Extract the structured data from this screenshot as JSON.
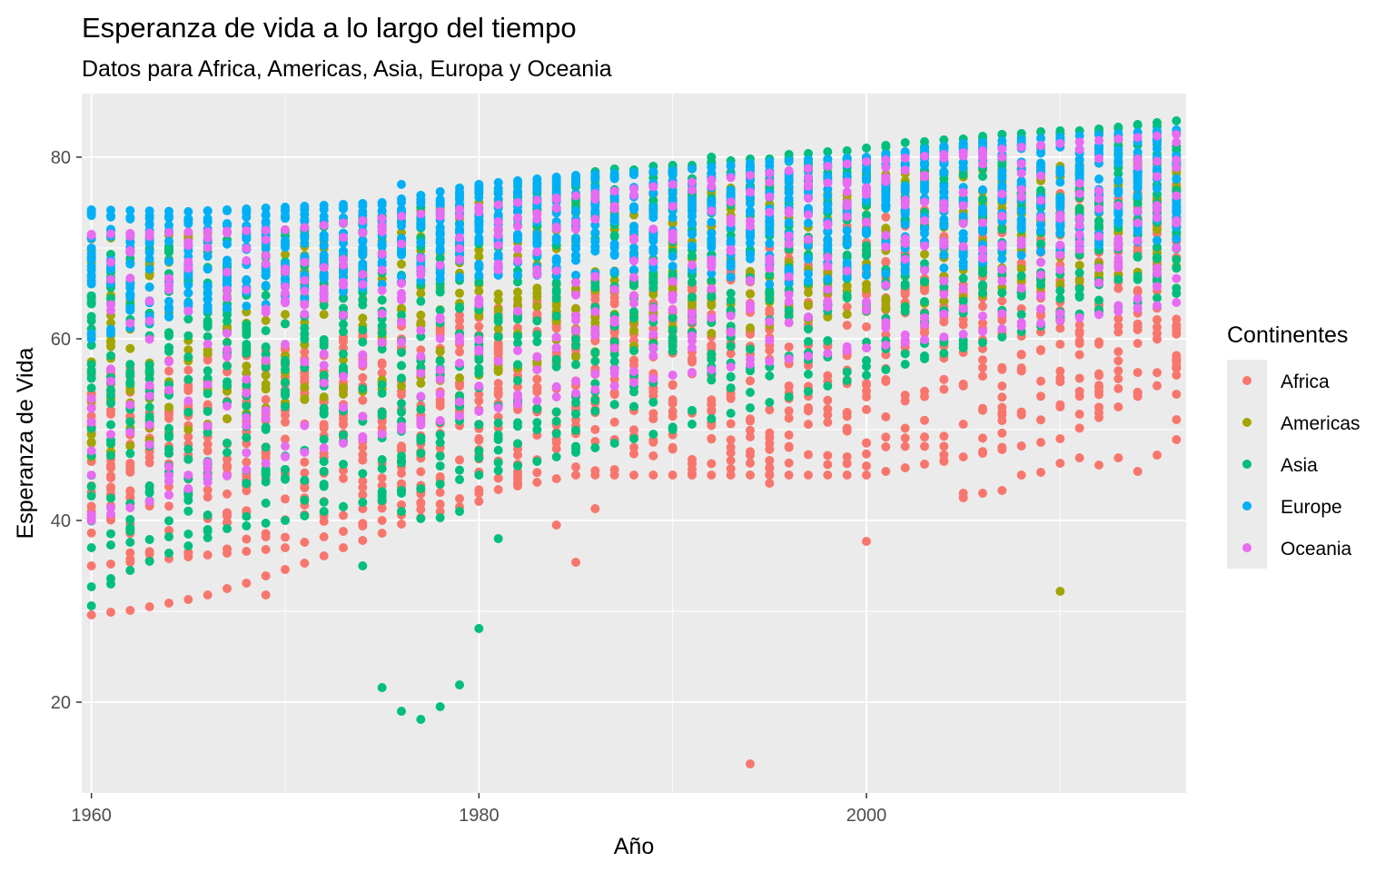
{
  "chart_data": {
    "type": "scatter",
    "title": "Esperanza de vida a lo largo del tiempo",
    "subtitle": "Datos para Africa, Americas, Asia, Europa y Oceania",
    "xlabel": "Año",
    "ylabel": "Esperanza de Vida",
    "xlim": [
      1959.5,
      2016.5
    ],
    "ylim": [
      10,
      87
    ],
    "x_ticks": [
      1960,
      1980,
      2000
    ],
    "y_ticks": [
      20,
      40,
      60,
      80
    ],
    "x_tick_labels": [
      "1960",
      "1980",
      "2000"
    ],
    "y_tick_labels": [
      "20",
      "40",
      "60",
      "80"
    ],
    "grid": true,
    "panel_background": "#ebebeb",
    "legend": {
      "title": "Continentes",
      "placement": "right",
      "items": [
        "Africa",
        "Americas",
        "Asia",
        "Europe",
        "Oceania"
      ]
    },
    "series": [
      {
        "name": "Africa",
        "color": "#f8766d",
        "range_start": [
          [
            1960,
            35,
            56
          ],
          [
            1965,
            36,
            58
          ],
          [
            1970,
            37,
            59
          ],
          [
            1975,
            40,
            61
          ],
          [
            1980,
            43,
            63
          ],
          [
            1985,
            45,
            65
          ],
          [
            1990,
            45,
            67
          ],
          [
            1995,
            45,
            70
          ],
          [
            2000,
            45,
            73
          ],
          [
            2005,
            47,
            75
          ],
          [
            2010,
            49,
            76
          ],
          [
            2016,
            56,
            77
          ]
        ],
        "outliers": [
          [
            1960,
            29.6
          ],
          [
            1961,
            29.9
          ],
          [
            1962,
            30.1
          ],
          [
            1963,
            30.5
          ],
          [
            1964,
            30.9
          ],
          [
            1965,
            31.3
          ],
          [
            1966,
            31.8
          ],
          [
            1967,
            32.5
          ],
          [
            1968,
            33.1
          ],
          [
            1969,
            31.8
          ],
          [
            1969,
            33.9
          ],
          [
            1970,
            34.6
          ],
          [
            1971,
            35.3
          ],
          [
            1972,
            36.1
          ],
          [
            1973,
            37.0
          ],
          [
            1974,
            37.8
          ],
          [
            1975,
            38.6
          ],
          [
            1976,
            39.6
          ],
          [
            1977,
            40.3
          ],
          [
            1978,
            41.0
          ],
          [
            1979,
            41.5
          ],
          [
            1980,
            42.1
          ],
          [
            1984,
            39.5
          ],
          [
            1985,
            35.4
          ],
          [
            1986,
            41.3
          ],
          [
            1994,
            13.2
          ],
          [
            1995,
            44.1
          ],
          [
            2000,
            37.7
          ],
          [
            2004,
            46.5
          ],
          [
            2005,
            43.0
          ],
          [
            2005,
            42.5
          ],
          [
            2006,
            43.0
          ],
          [
            2007,
            43.3
          ],
          [
            2008,
            45.0
          ],
          [
            2009,
            45.3
          ],
          [
            2010,
            46.3
          ],
          [
            2011,
            46.9
          ],
          [
            2012,
            46.1
          ],
          [
            2013,
            46.9
          ],
          [
            2014,
            45.4
          ],
          [
            2015,
            47.2
          ],
          [
            2016,
            48.9
          ],
          [
            2016,
            51.1
          ],
          [
            2016,
            53.9
          ]
        ]
      },
      {
        "name": "Americas",
        "color": "#a3a500",
        "range_start": [
          [
            1960,
            47,
            71
          ],
          [
            1970,
            53,
            72
          ],
          [
            1980,
            56,
            75
          ],
          [
            1990,
            60,
            76
          ],
          [
            2000,
            63,
            78
          ],
          [
            2010,
            66,
            79
          ],
          [
            2016,
            68,
            80
          ]
        ],
        "outliers": [
          [
            2010,
            32.2
          ]
        ]
      },
      {
        "name": "Asia",
        "color": "#00bf7d",
        "range_start": [
          [
            1960,
            37,
            69
          ],
          [
            1970,
            40,
            71
          ],
          [
            1980,
            45,
            75
          ],
          [
            1990,
            50,
            78
          ],
          [
            2000,
            56,
            80
          ],
          [
            2010,
            62,
            82
          ],
          [
            2016,
            65,
            84
          ]
        ],
        "top_values": [
          [
            1960,
            69.0
          ],
          [
            1961,
            69.3
          ],
          [
            1962,
            69.5
          ],
          [
            1963,
            69.8
          ],
          [
            1964,
            70.1
          ],
          [
            1965,
            70.3
          ],
          [
            1966,
            70.6
          ],
          [
            1967,
            70.9
          ],
          [
            1968,
            71.2
          ],
          [
            1969,
            71.5
          ],
          [
            1970,
            71.8
          ],
          [
            1971,
            72.1
          ],
          [
            1972,
            72.4
          ],
          [
            1973,
            72.7
          ],
          [
            1974,
            73.1
          ],
          [
            1975,
            73.5
          ],
          [
            1976,
            74.0
          ],
          [
            1977,
            74.5
          ],
          [
            1978,
            75.0
          ],
          [
            1979,
            75.5
          ],
          [
            1980,
            76.0
          ],
          [
            1981,
            76.3
          ],
          [
            1982,
            76.8
          ],
          [
            1983,
            77.2
          ],
          [
            1984,
            77.5
          ],
          [
            1985,
            77.8
          ],
          [
            1986,
            78.4
          ],
          [
            1987,
            78.7
          ],
          [
            1988,
            78.6
          ],
          [
            1989,
            79.0
          ],
          [
            1990,
            79.1
          ],
          [
            1991,
            79.1
          ],
          [
            1992,
            80.0
          ],
          [
            1993,
            79.6
          ],
          [
            1994,
            79.8
          ],
          [
            1995,
            79.8
          ],
          [
            1996,
            80.3
          ],
          [
            1997,
            80.4
          ],
          [
            1998,
            80.6
          ],
          [
            1999,
            80.7
          ],
          [
            2000,
            81.0
          ],
          [
            2001,
            81.3
          ],
          [
            2002,
            81.6
          ],
          [
            2003,
            81.7
          ],
          [
            2004,
            81.9
          ],
          [
            2005,
            82.0
          ],
          [
            2006,
            82.3
          ],
          [
            2007,
            82.5
          ],
          [
            2008,
            82.6
          ],
          [
            2009,
            82.8
          ],
          [
            2010,
            82.9
          ],
          [
            2011,
            82.9
          ],
          [
            2012,
            83.1
          ],
          [
            2013,
            83.3
          ],
          [
            2014,
            83.6
          ],
          [
            2015,
            83.8
          ],
          [
            2016,
            84.0
          ]
        ],
        "outliers": [
          [
            1960,
            30.6
          ],
          [
            1960,
            32.7
          ],
          [
            1961,
            33.0
          ],
          [
            1961,
            33.6
          ],
          [
            1962,
            34.5
          ],
          [
            1963,
            35.5
          ],
          [
            1964,
            36.4
          ],
          [
            1965,
            37.2
          ],
          [
            1966,
            38.1
          ],
          [
            1974,
            35.0
          ],
          [
            1975,
            21.6
          ],
          [
            1975,
            42.2
          ],
          [
            1976,
            19.0
          ],
          [
            1976,
            41.0
          ],
          [
            1977,
            18.1
          ],
          [
            1977,
            40.2
          ],
          [
            1978,
            19.5
          ],
          [
            1978,
            40.3
          ],
          [
            1979,
            21.9
          ],
          [
            1979,
            41.0
          ],
          [
            1980,
            28.1
          ],
          [
            1981,
            38.0
          ]
        ]
      },
      {
        "name": "Europe",
        "color": "#00b0f6",
        "range_start": [
          [
            1960,
            60,
            74.2
          ],
          [
            1965,
            63,
            74
          ],
          [
            1970,
            64,
            74.5
          ],
          [
            1975,
            66,
            75
          ],
          [
            1980,
            67,
            77
          ],
          [
            1985,
            67,
            78
          ],
          [
            1990,
            68,
            78.5
          ],
          [
            1995,
            66,
            79.5
          ],
          [
            2000,
            67,
            80
          ],
          [
            2005,
            68,
            81.5
          ],
          [
            2010,
            70,
            82.2
          ],
          [
            2016,
            71,
            83
          ]
        ],
        "outliers": [
          [
            1976,
            77.0
          ]
        ]
      },
      {
        "name": "Oceania",
        "color": "#e76bf3",
        "range_start": [
          [
            1960,
            40,
            71.5
          ],
          [
            1970,
            47,
            72
          ],
          [
            1980,
            52,
            74.5
          ],
          [
            1990,
            56,
            77
          ],
          [
            2000,
            59,
            79.5
          ],
          [
            2010,
            62,
            81.5
          ],
          [
            2016,
            64,
            82.5
          ]
        ],
        "outliers": []
      }
    ]
  }
}
